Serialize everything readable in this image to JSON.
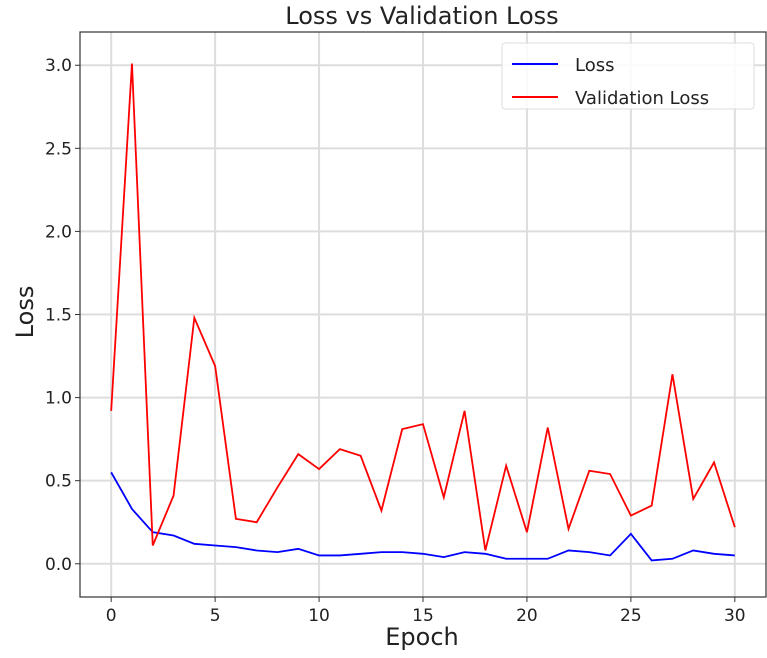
{
  "chart_data": {
    "type": "line",
    "title": "Loss vs Validation Loss",
    "xlabel": "Epoch",
    "ylabel": "Loss",
    "xlim": [
      -1.5,
      31.5
    ],
    "ylim": [
      -0.2,
      3.2
    ],
    "xticks": [
      0,
      5,
      10,
      15,
      20,
      25,
      30
    ],
    "xtick_labels": [
      "0",
      "5",
      "10",
      "15",
      "20",
      "25",
      "30"
    ],
    "yticks": [
      0.0,
      0.5,
      1.0,
      1.5,
      2.0,
      2.5,
      3.0
    ],
    "ytick_labels": [
      "0.0",
      "0.5",
      "1.0",
      "1.5",
      "2.0",
      "2.5",
      "3.0"
    ],
    "grid": true,
    "legend_position": "top-right",
    "x": [
      0,
      1,
      2,
      3,
      4,
      5,
      6,
      7,
      8,
      9,
      10,
      11,
      12,
      13,
      14,
      15,
      16,
      17,
      18,
      19,
      20,
      21,
      22,
      23,
      24,
      25,
      26,
      27,
      28,
      29,
      30
    ],
    "series": [
      {
        "name": "Loss",
        "color": "#0000ff",
        "values": [
          0.55,
          0.33,
          0.19,
          0.17,
          0.12,
          0.11,
          0.1,
          0.08,
          0.07,
          0.09,
          0.05,
          0.05,
          0.06,
          0.07,
          0.07,
          0.06,
          0.04,
          0.07,
          0.06,
          0.03,
          0.03,
          0.03,
          0.08,
          0.07,
          0.05,
          0.18,
          0.02,
          0.03,
          0.08,
          0.06,
          0.05
        ]
      },
      {
        "name": "Validation Loss",
        "color": "#ff0000",
        "values": [
          0.92,
          3.01,
          0.11,
          0.41,
          1.48,
          1.19,
          0.27,
          0.25,
          0.46,
          0.66,
          0.57,
          0.69,
          0.65,
          0.32,
          0.81,
          0.84,
          0.4,
          0.92,
          0.08,
          0.59,
          0.19,
          0.82,
          0.21,
          0.56,
          0.54,
          0.29,
          0.35,
          1.14,
          0.39,
          0.61,
          0.22
        ]
      }
    ]
  }
}
